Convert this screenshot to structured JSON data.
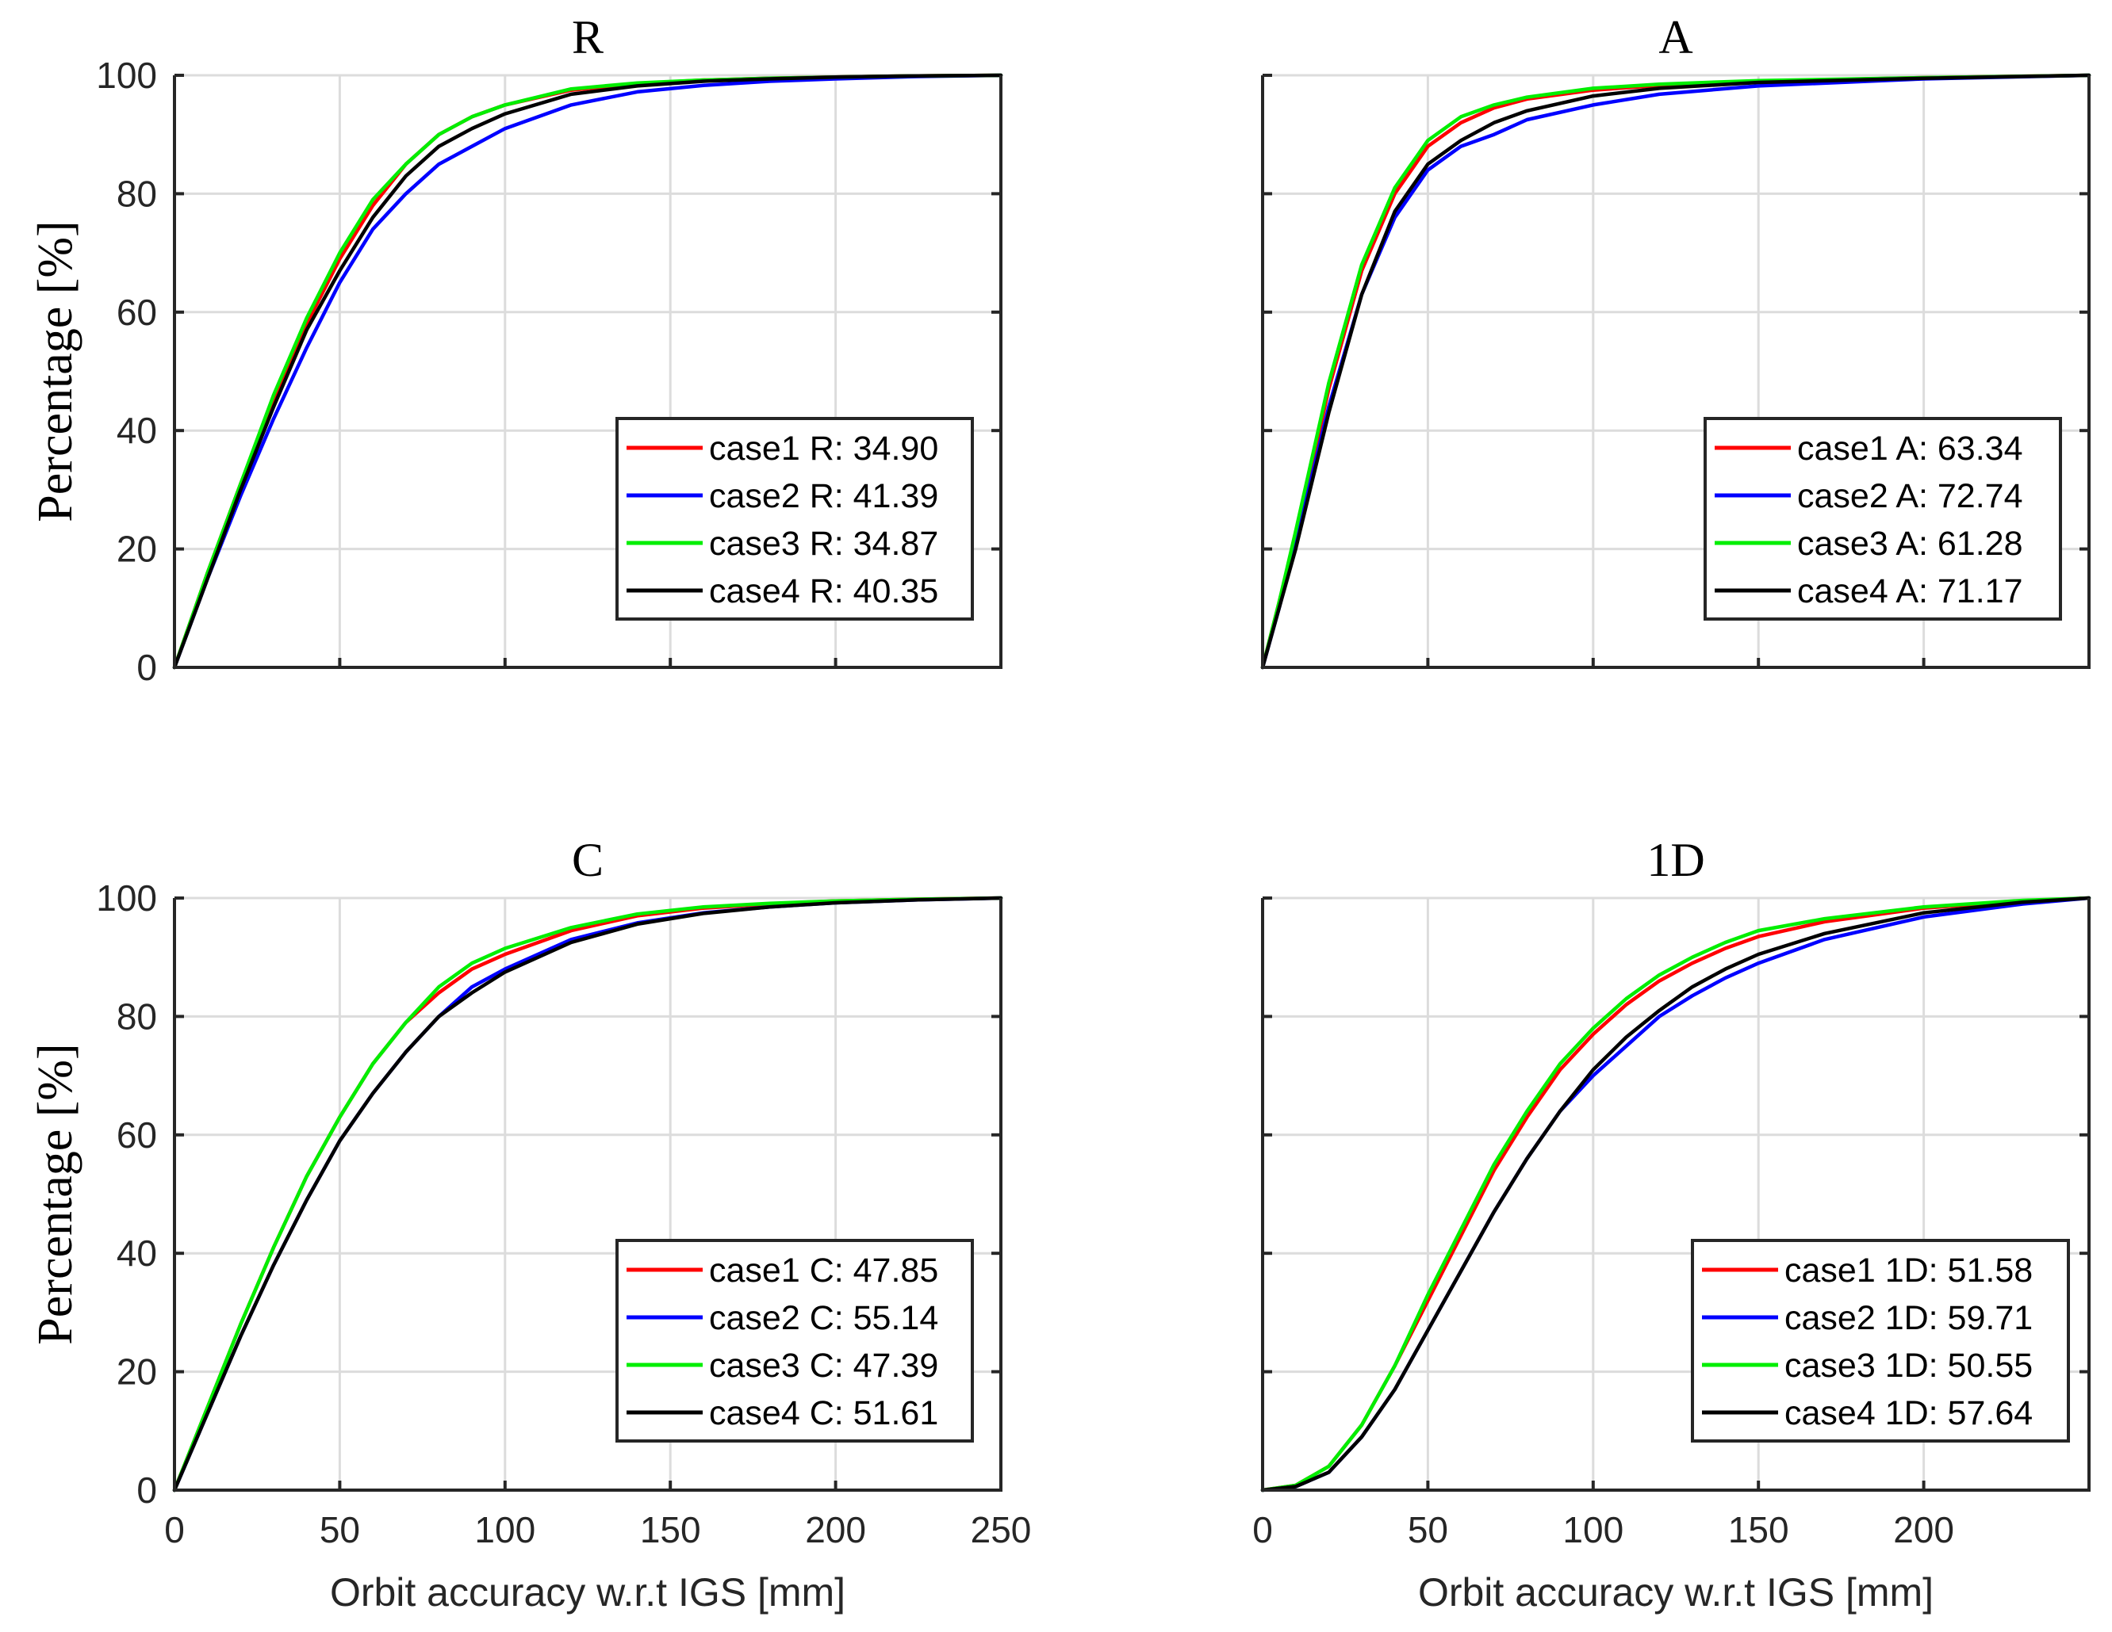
{
  "chart_data": [
    {
      "type": "line",
      "title": "R",
      "xlabel": "",
      "ylabel": "Percentage [%]",
      "xlim": [
        0,
        250
      ],
      "ylim": [
        0,
        100
      ],
      "xticks": [],
      "yticks": [
        "0",
        "20",
        "40",
        "60",
        "80",
        "100"
      ],
      "grid": true,
      "legend_position": "bottom-right",
      "series": [
        {
          "name": "case1 R: 34.90",
          "color": "#ff0000",
          "x": [
            0,
            10,
            20,
            30,
            40,
            50,
            60,
            70,
            80,
            90,
            100,
            120,
            140,
            160,
            180,
            200,
            225,
            250
          ],
          "y": [
            0,
            16,
            31,
            45,
            58,
            69,
            78,
            85,
            90,
            93,
            95,
            97.5,
            98.6,
            99.2,
            99.5,
            99.7,
            99.9,
            100
          ]
        },
        {
          "name": "case2 R: 41.39",
          "color": "#0000ff",
          "x": [
            0,
            10,
            20,
            30,
            40,
            50,
            60,
            70,
            80,
            90,
            100,
            120,
            140,
            160,
            180,
            200,
            225,
            250
          ],
          "y": [
            0,
            15,
            29,
            42,
            54,
            65,
            74,
            80,
            85,
            88,
            91,
            95,
            97.2,
            98.3,
            99,
            99.4,
            99.8,
            100
          ]
        },
        {
          "name": "case3 R: 34.87",
          "color": "#00ee00",
          "x": [
            0,
            10,
            20,
            30,
            40,
            50,
            60,
            70,
            80,
            90,
            100,
            120,
            140,
            160,
            180,
            200,
            225,
            250
          ],
          "y": [
            0,
            16,
            31,
            46,
            59,
            70,
            79,
            85,
            90,
            93,
            95,
            97.7,
            98.7,
            99.2,
            99.5,
            99.7,
            99.9,
            100
          ]
        },
        {
          "name": "case4 R: 40.35",
          "color": "#000000",
          "x": [
            0,
            10,
            20,
            30,
            40,
            50,
            60,
            70,
            80,
            90,
            100,
            120,
            140,
            160,
            180,
            200,
            225,
            250
          ],
          "y": [
            0,
            15,
            30,
            44,
            57,
            67,
            76,
            83,
            88,
            91,
            93.5,
            96.8,
            98.2,
            99,
            99.4,
            99.7,
            99.9,
            100
          ]
        }
      ]
    },
    {
      "type": "line",
      "title": "A",
      "xlabel": "",
      "ylabel": "",
      "xlim": [
        0,
        250
      ],
      "ylim": [
        0,
        100
      ],
      "xticks": [],
      "yticks": [],
      "grid": true,
      "legend_position": "bottom-right",
      "series": [
        {
          "name": "case1 A: 63.34",
          "color": "#ff0000",
          "x": [
            0,
            5,
            10,
            20,
            30,
            40,
            50,
            60,
            70,
            80,
            100,
            120,
            150,
            200,
            250
          ],
          "y": [
            0,
            11,
            22,
            47,
            67,
            80,
            88,
            92,
            94.5,
            96,
            97.5,
            98.3,
            99,
            99.6,
            100
          ]
        },
        {
          "name": "case2 A: 72.74",
          "color": "#0000ff",
          "x": [
            0,
            5,
            10,
            20,
            30,
            40,
            50,
            60,
            70,
            80,
            100,
            120,
            150,
            200,
            250
          ],
          "y": [
            0,
            10,
            21,
            44,
            63,
            76,
            84,
            88,
            90,
            92.5,
            95,
            96.8,
            98.2,
            99.4,
            100
          ]
        },
        {
          "name": "case3 A: 61.28",
          "color": "#00ee00",
          "x": [
            0,
            5,
            10,
            20,
            30,
            40,
            50,
            60,
            70,
            80,
            100,
            120,
            150,
            200,
            250
          ],
          "y": [
            0,
            11,
            23,
            48,
            68,
            81,
            89,
            93,
            95,
            96.3,
            97.8,
            98.5,
            99.1,
            99.6,
            100
          ]
        },
        {
          "name": "case4 A: 71.17",
          "color": "#000000",
          "x": [
            0,
            5,
            10,
            20,
            30,
            40,
            50,
            60,
            70,
            80,
            100,
            120,
            150,
            200,
            250
          ],
          "y": [
            0,
            10,
            20,
            43,
            63,
            77,
            85,
            89,
            92,
            94,
            96.5,
            97.8,
            98.8,
            99.5,
            100
          ]
        }
      ]
    },
    {
      "type": "line",
      "title": "C",
      "xlabel": "Orbit accuracy w.r.t IGS [mm]",
      "ylabel": "Percentage [%]",
      "xlim": [
        0,
        250
      ],
      "ylim": [
        0,
        100
      ],
      "xticks": [
        "0",
        "50",
        "100",
        "150",
        "200",
        "250"
      ],
      "yticks": [
        "0",
        "20",
        "40",
        "60",
        "80",
        "100"
      ],
      "grid": true,
      "legend_position": "bottom-right",
      "series": [
        {
          "name": "case1 C: 47.85",
          "color": "#ff0000",
          "x": [
            0,
            10,
            20,
            30,
            40,
            50,
            60,
            70,
            80,
            90,
            100,
            120,
            140,
            160,
            180,
            200,
            225,
            250
          ],
          "y": [
            0,
            14,
            28,
            41,
            53,
            63,
            72,
            79,
            84,
            88,
            90.5,
            94.5,
            97,
            98.3,
            99,
            99.5,
            99.8,
            100
          ]
        },
        {
          "name": "case2 C: 55.14",
          "color": "#0000ff",
          "x": [
            0,
            10,
            20,
            30,
            40,
            50,
            60,
            70,
            80,
            90,
            100,
            120,
            140,
            160,
            180,
            200,
            225,
            250
          ],
          "y": [
            0,
            13,
            26,
            38,
            49,
            59,
            67,
            74,
            80,
            85,
            88,
            93,
            95.8,
            97.5,
            98.5,
            99.2,
            99.7,
            100
          ]
        },
        {
          "name": "case3 C: 47.39",
          "color": "#00ee00",
          "x": [
            0,
            10,
            20,
            30,
            40,
            50,
            60,
            70,
            80,
            90,
            100,
            120,
            140,
            160,
            180,
            200,
            225,
            250
          ],
          "y": [
            0,
            14,
            28,
            41,
            53,
            63,
            72,
            79,
            85,
            89,
            91.5,
            95,
            97.3,
            98.5,
            99.1,
            99.5,
            99.8,
            100
          ]
        },
        {
          "name": "case4 C: 51.61",
          "color": "#000000",
          "x": [
            0,
            10,
            20,
            30,
            40,
            50,
            60,
            70,
            80,
            90,
            100,
            120,
            140,
            160,
            180,
            200,
            225,
            250
          ],
          "y": [
            0,
            13,
            26,
            38,
            49,
            59,
            67,
            74,
            80,
            84,
            87.5,
            92.5,
            95.6,
            97.4,
            98.5,
            99.2,
            99.7,
            100
          ]
        }
      ]
    },
    {
      "type": "line",
      "title": "1D",
      "xlabel": "Orbit accuracy w.r.t IGS [mm]",
      "ylabel": "",
      "xlim": [
        0,
        250
      ],
      "ylim": [
        0,
        100
      ],
      "xticks": [
        "0",
        "50",
        "100",
        "150",
        "200"
      ],
      "yticks": [],
      "grid": true,
      "legend_position": "bottom-right",
      "series": [
        {
          "name": "case1 1D: 51.58",
          "color": "#ff0000",
          "x": [
            0,
            10,
            20,
            30,
            40,
            50,
            60,
            70,
            80,
            90,
            100,
            110,
            120,
            130,
            140,
            150,
            170,
            200,
            230,
            250
          ],
          "y": [
            0,
            0.8,
            4,
            11,
            21,
            32,
            43,
            54,
            63,
            71,
            77,
            82,
            86,
            89,
            91.5,
            93.5,
            96,
            98.3,
            99.5,
            100
          ]
        },
        {
          "name": "case2 1D: 59.71",
          "color": "#0000ff",
          "x": [
            0,
            10,
            20,
            30,
            40,
            50,
            60,
            70,
            80,
            90,
            100,
            110,
            120,
            130,
            140,
            150,
            170,
            200,
            230,
            250
          ],
          "y": [
            0,
            0.6,
            3,
            9,
            17,
            27,
            37,
            47,
            56,
            64,
            70,
            75,
            80,
            83.5,
            86.5,
            89,
            93,
            96.8,
            99,
            100
          ]
        },
        {
          "name": "case3 1D: 50.55",
          "color": "#00ee00",
          "x": [
            0,
            10,
            20,
            30,
            40,
            50,
            60,
            70,
            80,
            90,
            100,
            110,
            120,
            130,
            140,
            150,
            170,
            200,
            230,
            250
          ],
          "y": [
            0,
            0.8,
            4,
            11,
            21,
            33,
            44,
            55,
            64,
            72,
            78,
            83,
            87,
            90,
            92.5,
            94.5,
            96.5,
            98.5,
            99.6,
            100
          ]
        },
        {
          "name": "case4 1D: 57.64",
          "color": "#000000",
          "x": [
            0,
            10,
            20,
            30,
            40,
            50,
            60,
            70,
            80,
            90,
            100,
            110,
            120,
            130,
            140,
            150,
            170,
            200,
            230,
            250
          ],
          "y": [
            0,
            0.6,
            3,
            9,
            17,
            27,
            37,
            47,
            56,
            64,
            71,
            76.5,
            81,
            85,
            88,
            90.5,
            94,
            97.5,
            99.3,
            100
          ]
        }
      ]
    }
  ]
}
